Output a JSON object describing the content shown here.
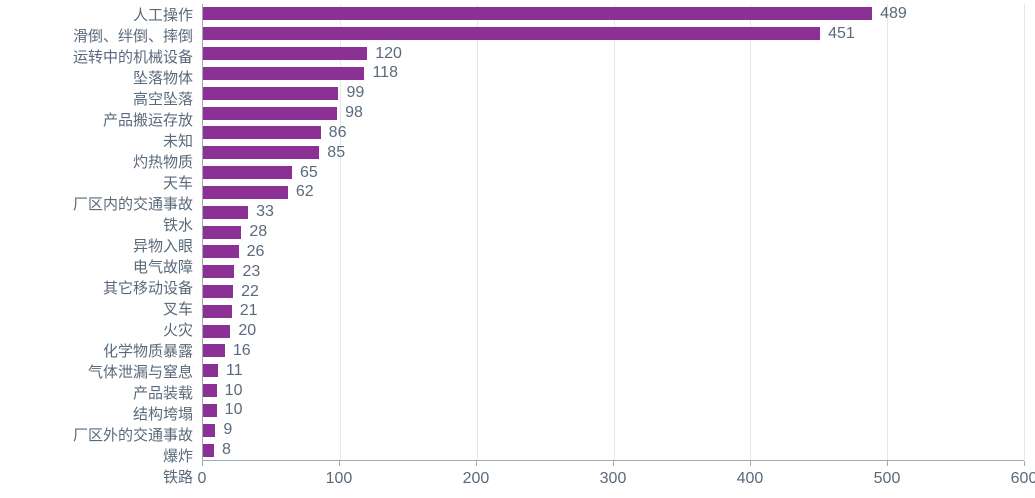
{
  "chart_data": {
    "type": "bar",
    "orientation": "horizontal",
    "title": "",
    "xlabel": "",
    "ylabel": "",
    "categories": [
      "人工操作",
      "滑倒、绊倒、摔倒",
      "运转中的机械设备",
      "坠落物体",
      "高空坠落",
      "产品搬运存放",
      "未知",
      "灼热物质",
      "天车",
      "厂区内的交通事故",
      "铁水",
      "异物入眼",
      "电气故障",
      "其它移动设备",
      "叉车",
      "火灾",
      "化学物质暴露",
      "气体泄漏与窒息",
      "产品装载",
      "结构垮塌",
      "厂区外的交通事故",
      "爆炸",
      "铁路"
    ],
    "values": [
      489,
      451,
      120,
      118,
      99,
      98,
      86,
      85,
      65,
      62,
      33,
      28,
      26,
      23,
      22,
      21,
      20,
      16,
      11,
      10,
      10,
      9,
      8
    ],
    "xlim": [
      0,
      600
    ],
    "xticks": [
      0,
      100,
      200,
      300,
      400,
      500,
      600
    ],
    "grid": true,
    "legend": "none",
    "colors": {
      "bar": "#8b3196",
      "label": "#5a6a7b",
      "value_label": "#5a6a7b",
      "axis_line": "#9fa9b3",
      "gridline": "#e4e8ec",
      "background": "#ffffff"
    }
  }
}
